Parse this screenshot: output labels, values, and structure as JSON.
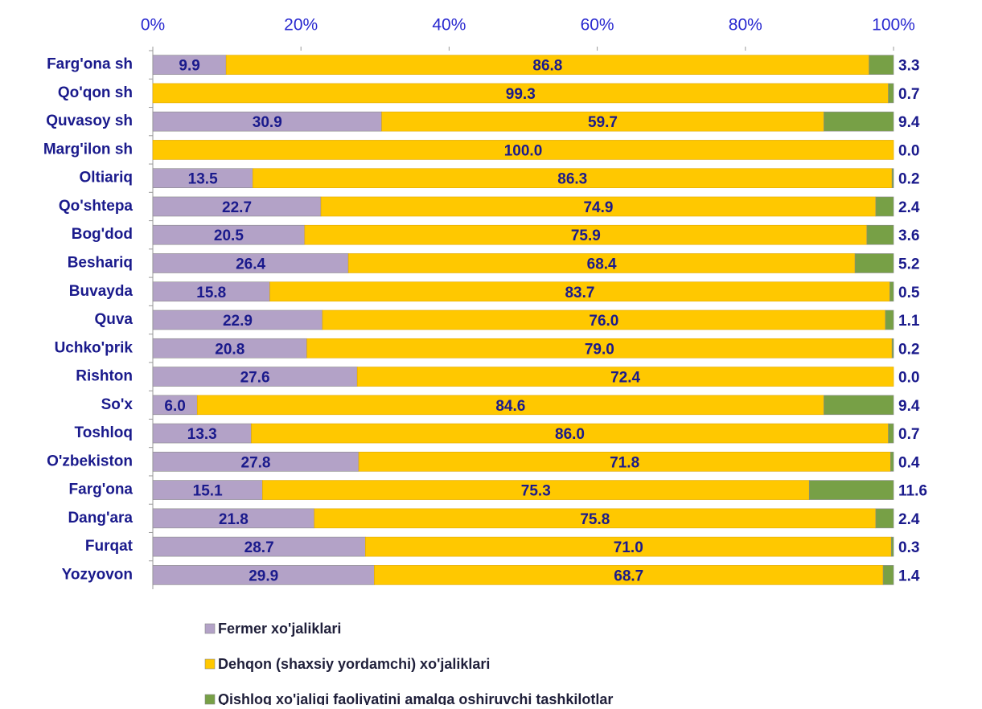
{
  "chart_data": {
    "type": "bar",
    "orientation": "horizontal",
    "stacking": "percent",
    "categories": [
      "Farg'ona sh",
      "Qo'qon sh",
      "Quvasoy sh",
      "Marg'ilon sh",
      "Oltiariq",
      "Qo'shtepa",
      "Bog'dod",
      "Beshariq",
      "Buvayda",
      "Quva",
      "Uchko'prik",
      "Rishton",
      "So'x",
      "Toshloq",
      "O'zbekiston",
      "Farg'ona",
      "Dang'ara",
      "Furqat",
      "Yozyovon"
    ],
    "series": [
      {
        "name": "Fermer xo'jaliklari",
        "color": "#b3a2c7",
        "values": [
          9.9,
          0.0,
          30.9,
          0.0,
          13.5,
          22.7,
          20.5,
          26.4,
          15.8,
          22.9,
          20.8,
          27.6,
          6.0,
          13.3,
          27.8,
          15.1,
          21.8,
          28.7,
          29.9
        ],
        "value_labels": [
          "9.9",
          "0.0",
          "30.9",
          "0.0",
          "13.5",
          "22.7",
          "20.5",
          "26.4",
          "15.8",
          "22.9",
          "20.8",
          "27.6",
          "6.0",
          "13.3",
          "27.8",
          "15.1",
          "21.8",
          "28.7",
          "29.9"
        ]
      },
      {
        "name": "Dehqon (shaxsiy yordamchi) xo'jaliklari",
        "color": "#ffc800",
        "values": [
          86.8,
          99.3,
          59.7,
          100.0,
          86.3,
          74.9,
          75.9,
          68.4,
          83.7,
          76.0,
          79.0,
          72.4,
          84.6,
          86.0,
          71.8,
          75.3,
          75.8,
          71.0,
          68.7
        ],
        "value_labels": [
          "86.8",
          "99.3",
          "59.7",
          "100.0",
          "86.3",
          "74.9",
          "75.9",
          "68.4",
          "83.7",
          "76.0",
          "79.0",
          "72.4",
          "84.6",
          "86.0",
          "71.8",
          "75.3",
          "75.8",
          "71.0",
          "68.7"
        ]
      },
      {
        "name": "Qishloq xo'jaligi faoliyatini amalga oshiruvchi tashkilotlar",
        "color": "#77a046",
        "values": [
          3.3,
          0.7,
          9.4,
          0.0,
          0.2,
          2.4,
          3.6,
          5.2,
          0.5,
          1.1,
          0.2,
          0.0,
          9.4,
          0.7,
          0.4,
          11.6,
          2.4,
          0.3,
          1.4
        ],
        "value_labels": [
          "3.3",
          "0.7",
          "9.4",
          "0.0",
          "0.2",
          "2.4",
          "3.6",
          "5.2",
          "0.5",
          "1.1",
          "0.2",
          "0.0",
          "9.4",
          "0.7",
          "0.4",
          "11.6",
          "2.4",
          "0.3",
          "1.4"
        ]
      }
    ],
    "xlim": [
      0,
      100
    ],
    "xticks": [
      {
        "value": 0,
        "label": "0%"
      },
      {
        "value": 20,
        "label": "20%"
      },
      {
        "value": 40,
        "label": "40%"
      },
      {
        "value": 60,
        "label": "60%"
      },
      {
        "value": 80,
        "label": "80%"
      },
      {
        "value": 100,
        "label": "100%"
      }
    ],
    "legend": "bottom"
  }
}
